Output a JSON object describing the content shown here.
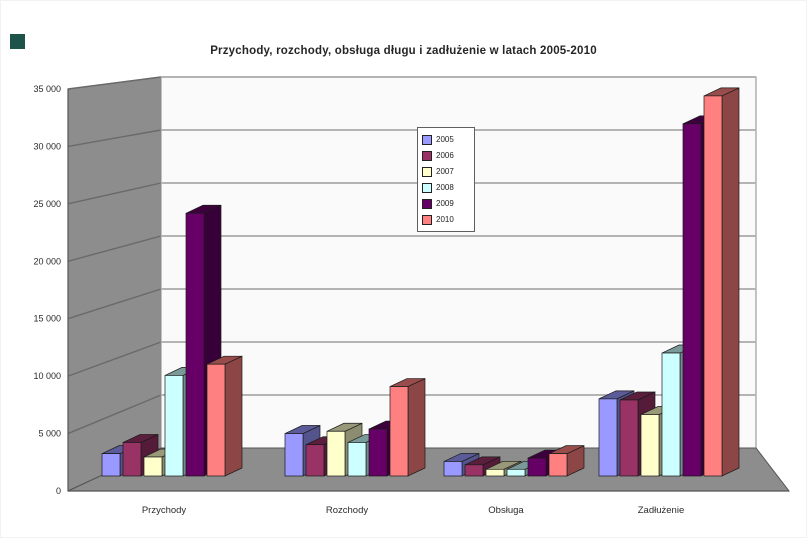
{
  "page": {
    "background_color": "#ffffff"
  },
  "decor": {
    "corner_square_color": "#1d5348"
  },
  "chart_data": {
    "type": "bar",
    "style": "3d-clustered-column",
    "title": "Przychody, rozchody, obsługa długu i zadłużenie w latach 2005-2010",
    "categories": [
      "Przychody",
      "Rozchody",
      "Obsługa",
      "Zadłużenie"
    ],
    "series": [
      {
        "name": "2005",
        "color": "#9999FF",
        "values": [
          2000,
          3800,
          1300,
          6900
        ]
      },
      {
        "name": "2006",
        "color": "#993366",
        "values": [
          3000,
          2800,
          1000,
          6800
        ]
      },
      {
        "name": "2007",
        "color": "#FFFFCC",
        "values": [
          1700,
          4000,
          600,
          5500
        ]
      },
      {
        "name": "2008",
        "color": "#CCFFFF",
        "values": [
          9000,
          3000,
          600,
          11000
        ]
      },
      {
        "name": "2009",
        "color": "#660066",
        "values": [
          23500,
          4200,
          1600,
          31500
        ]
      },
      {
        "name": "2010",
        "color": "#FF8080",
        "values": [
          10000,
          8000,
          2000,
          34000
        ]
      }
    ],
    "y_axis": {
      "min": 0,
      "max": 35000,
      "step": 5000,
      "tick_labels": [
        "0",
        "5 000",
        "10 000",
        "15 000",
        "20 000",
        "25 000",
        "30 000",
        "35 000"
      ]
    },
    "x_axis": {
      "labels": [
        "Przychody",
        "Rozchody",
        "Obsługa",
        "Zadłużenie"
      ]
    },
    "legend": {
      "position": "overlay-center-left",
      "entries": [
        "2005",
        "2006",
        "2007",
        "2008",
        "2009",
        "2010"
      ]
    },
    "grid": true,
    "colors": {
      "side_wall": "#8d8d8d",
      "back_wall": "#fafafa",
      "floor": "#8d8d8d",
      "back_gridline": "#b4b4b4",
      "side_gridline": "#6a6a6a",
      "axis_line": "#555555",
      "tick_text": "#2b2b2b",
      "title_text": "#262626"
    }
  }
}
